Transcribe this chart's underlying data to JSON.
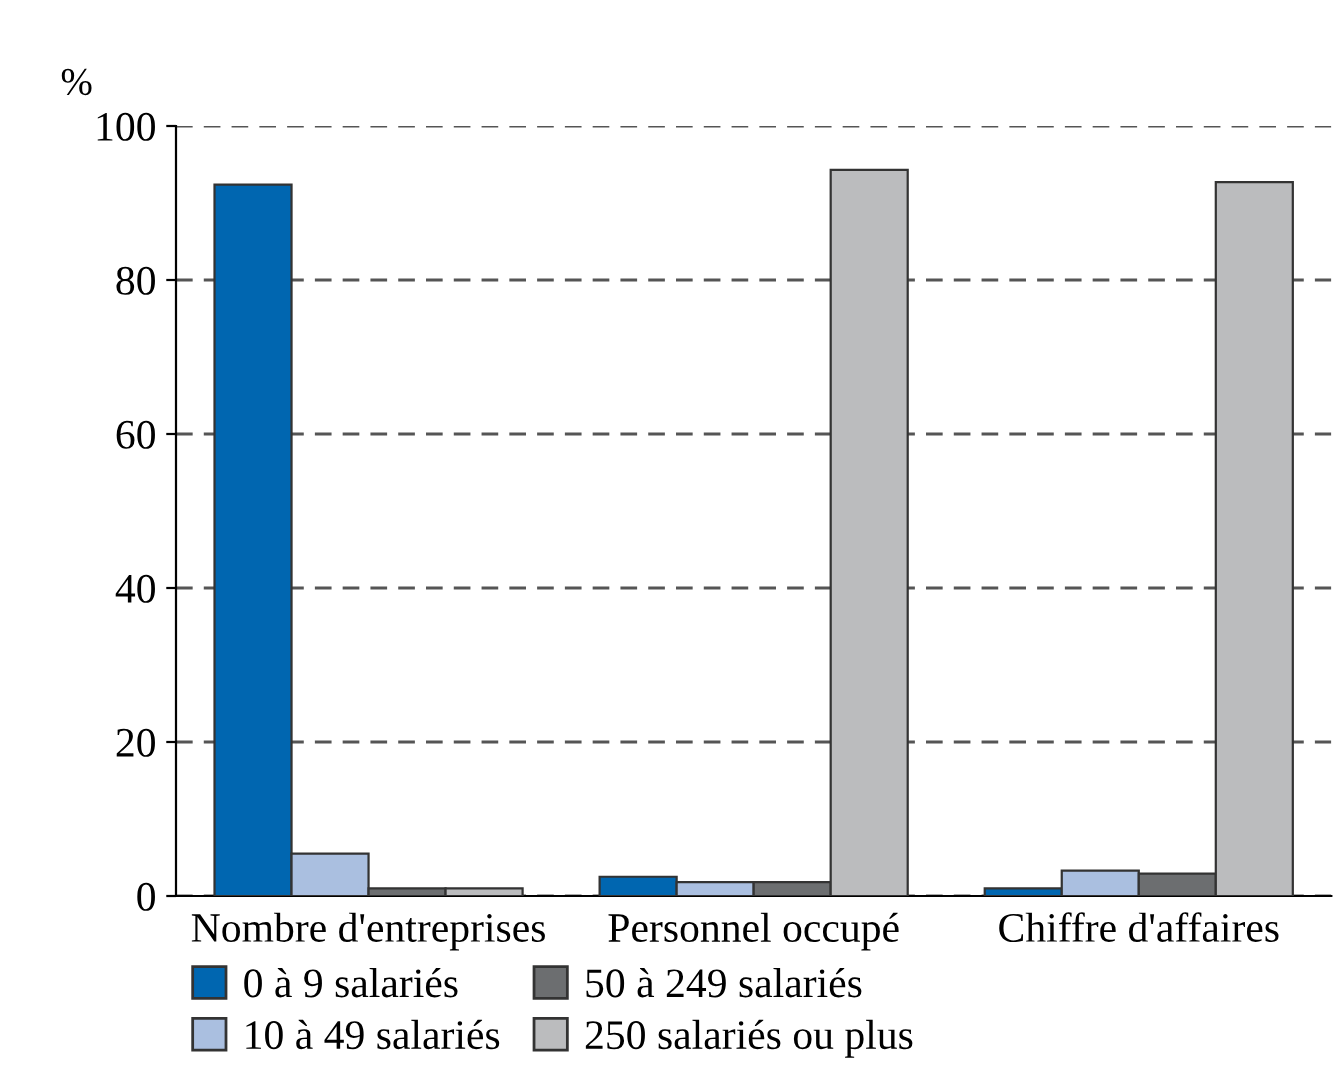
{
  "chart_data": {
    "type": "bar",
    "ylabel": "%",
    "categories": [
      "Nombre d'entreprises",
      "Personnel occupé",
      "Chiffre d'affaires"
    ],
    "series": [
      {
        "name": "0 à 9 salariés",
        "color": "#0066b0",
        "values": [
          92.4,
          2.5,
          1.0
        ]
      },
      {
        "name": "10 à 49 salariés",
        "color": "#aabfe0",
        "values": [
          5.5,
          1.8,
          3.3
        ]
      },
      {
        "name": "50 à 249 salariés",
        "color": "#6c6e70",
        "values": [
          1.0,
          1.8,
          2.9
        ]
      },
      {
        "name": "250 salariés ou plus",
        "color": "#bbbcbe",
        "values": [
          1.0,
          94.3,
          92.7
        ]
      }
    ],
    "ylim": [
      0,
      100
    ],
    "yticks": [
      0,
      20,
      40,
      60,
      80,
      100
    ],
    "grid": "y",
    "legend": "bottom"
  }
}
